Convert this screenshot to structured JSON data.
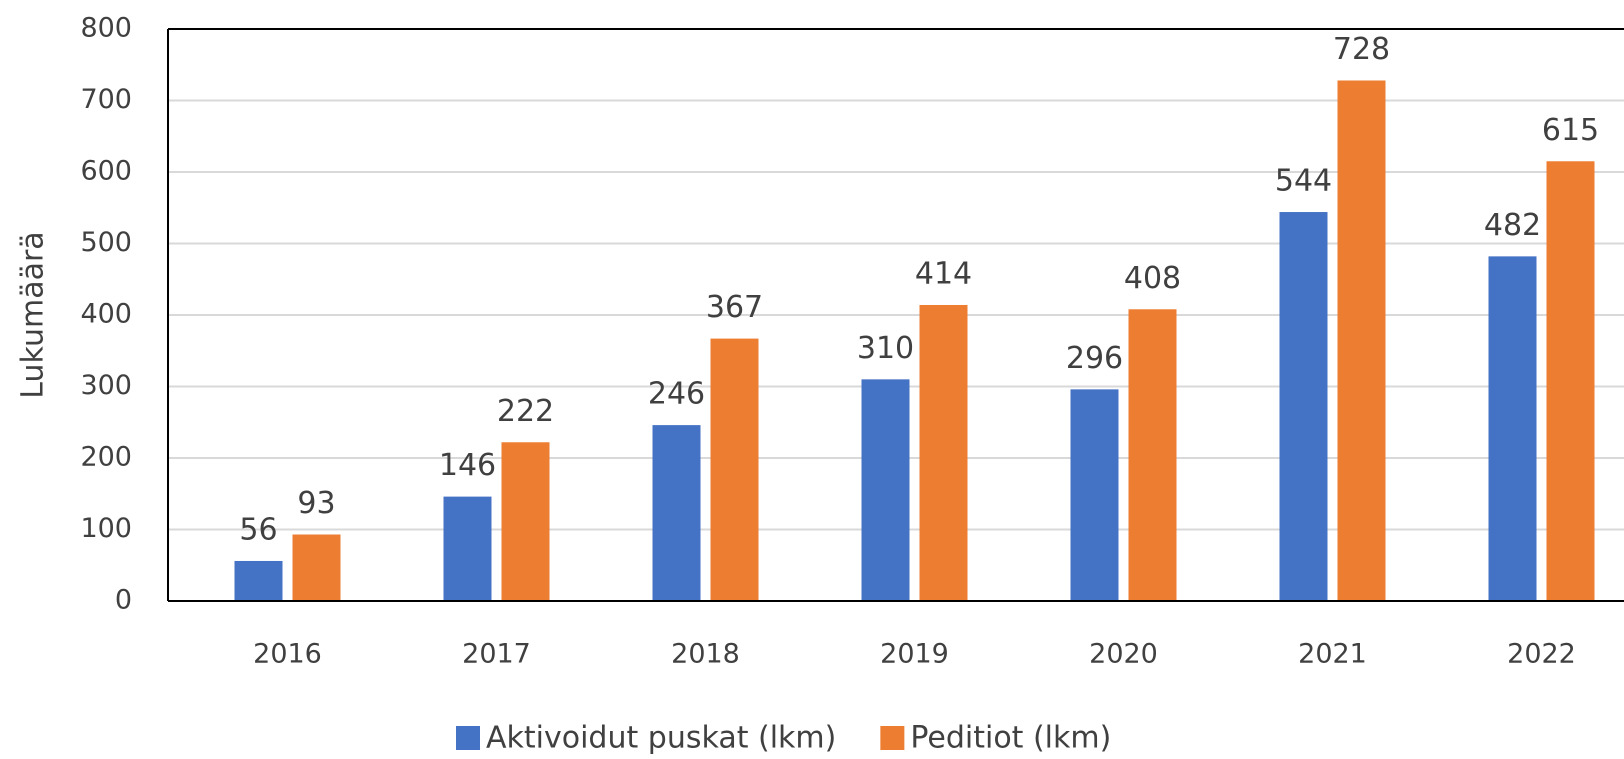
{
  "chart_data": {
    "type": "bar",
    "y_label": "Lukumäärä",
    "categories": [
      "2016",
      "2017",
      "2018",
      "2019",
      "2020",
      "2021",
      "2022"
    ],
    "series": [
      {
        "name": "Aktivoidut puskat (lkm)",
        "color": "#4472c4",
        "values": [
          56,
          146,
          246,
          310,
          296,
          544,
          482
        ]
      },
      {
        "name": "Peditiot (lkm)",
        "color": "#ed7d31",
        "values": [
          93,
          222,
          367,
          414,
          408,
          728,
          615
        ]
      }
    ],
    "ylim": [
      0,
      800
    ],
    "yticks": [
      0,
      100,
      200,
      300,
      400,
      500,
      600,
      700,
      800
    ],
    "grid": true,
    "legend": "bottom"
  }
}
